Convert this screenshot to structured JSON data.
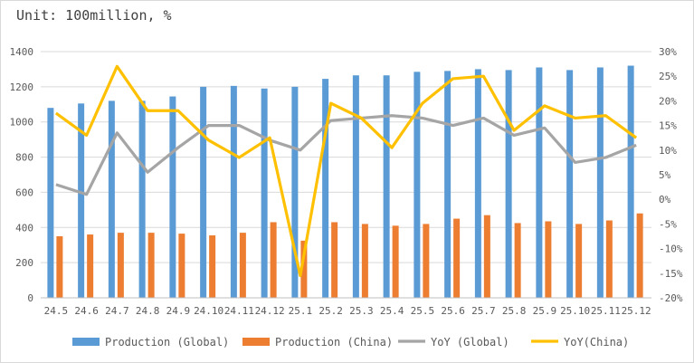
{
  "chart_data": {
    "type": "bar+line",
    "unit_label": "Unit: 100million, %",
    "categories": [
      "24.5",
      "24.6",
      "24.7",
      "24.8",
      "24.9",
      "24.10",
      "24.11",
      "24.12",
      "25.1",
      "25.2",
      "25.3",
      "25.4",
      "25.5",
      "25.6",
      "25.7",
      "25.8",
      "25.9",
      "25.10",
      "25.11",
      "25.12"
    ],
    "y_left": {
      "min": 0,
      "max": 1400,
      "ticks": [
        "0",
        "200",
        "400",
        "600",
        "800",
        "1000",
        "1200",
        "1400"
      ]
    },
    "y_right": {
      "min": -20,
      "max": 30,
      "ticks": [
        "-20%",
        "-15%",
        "-10%",
        "-5%",
        "0%",
        "5%",
        "10%",
        "15%",
        "20%",
        "25%",
        "30%"
      ]
    },
    "grid": true,
    "legend_position": "bottom",
    "series": [
      {
        "name": "Production (Global)",
        "type": "bar",
        "axis": "left",
        "color": "#5b9bd5",
        "values": [
          1080,
          1105,
          1120,
          1120,
          1145,
          1200,
          1205,
          1190,
          1200,
          1245,
          1265,
          1265,
          1285,
          1290,
          1300,
          1295,
          1310,
          1295,
          1310,
          1320
        ]
      },
      {
        "name": "Production (China)",
        "type": "bar",
        "axis": "left",
        "color": "#ed7d31",
        "values": [
          350,
          360,
          370,
          370,
          365,
          355,
          370,
          430,
          325,
          430,
          420,
          410,
          420,
          450,
          470,
          425,
          435,
          420,
          440,
          480
        ]
      },
      {
        "name": "YoY (Global)",
        "type": "line",
        "axis": "right",
        "color": "#a5a5a5",
        "values": [
          3,
          1,
          13.5,
          5.5,
          10.5,
          15,
          15,
          12,
          10,
          16,
          16.5,
          17,
          16.5,
          15,
          16.5,
          13,
          14.5,
          7.5,
          8.5,
          11
        ]
      },
      {
        "name": "YoY(China)",
        "type": "line",
        "axis": "right",
        "color": "#ffc000",
        "values": [
          17.5,
          13,
          27,
          18,
          18,
          12,
          8.5,
          12.5,
          -15.5,
          19.5,
          16.5,
          10.5,
          19.5,
          24.5,
          25,
          14,
          19,
          16.5,
          17,
          12.5
        ]
      }
    ]
  }
}
